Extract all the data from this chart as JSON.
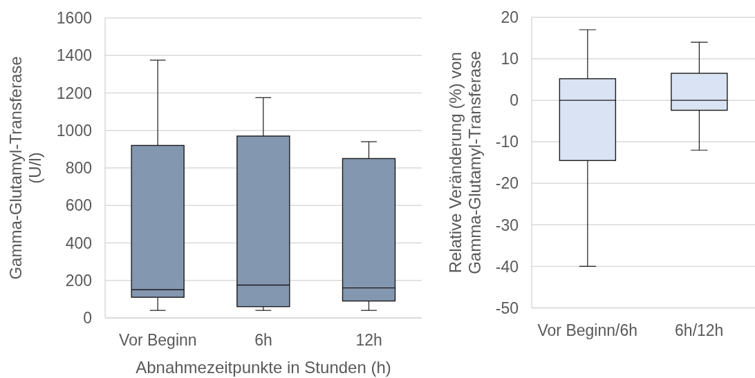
{
  "chart_data": [
    {
      "type": "box",
      "categories": [
        "Vor Beginn",
        "6h",
        "12h"
      ],
      "xlabel": "Abnahmezeitpunkte in Stunden (h)",
      "ylabel": "Gamma-Glutamyl-Transferase (U/l)",
      "ylim": [
        0,
        1600
      ],
      "yticks": [
        0,
        200,
        400,
        600,
        800,
        1000,
        1200,
        1400,
        1600
      ],
      "grid": "y",
      "series": [
        {
          "color": "#8497b0",
          "boxes": [
            {
              "low": 40,
              "q1": 110,
              "median": 150,
              "q3": 920,
              "high": 1375
            },
            {
              "low": 40,
              "q1": 60,
              "median": 175,
              "q3": 970,
              "high": 1175
            },
            {
              "low": 40,
              "q1": 90,
              "median": 160,
              "q3": 850,
              "high": 940
            }
          ]
        }
      ]
    },
    {
      "type": "box",
      "categories": [
        "Vor Beginn/6h",
        "6h/12h"
      ],
      "ylabel": "Relative Veränderung (%) von Gamma-Glutamyl-Transferase",
      "ylim": [
        -50,
        20
      ],
      "yticks": [
        -50,
        -40,
        -30,
        -20,
        -10,
        0,
        10,
        20
      ],
      "grid": "y",
      "series": [
        {
          "color": "#dae3f3",
          "boxes": [
            {
              "low": -40,
              "q1": -14.5,
              "median": 0,
              "q3": 5.2,
              "high": 17
            },
            {
              "low": -12,
              "q1": -2.4,
              "median": 0,
              "q3": 6.5,
              "high": 14
            }
          ]
        }
      ]
    }
  ]
}
